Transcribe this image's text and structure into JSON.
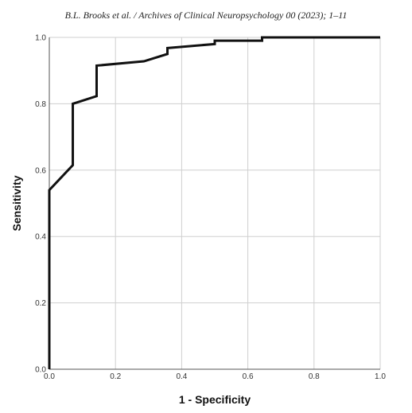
{
  "header": {
    "citation": "B.L. Brooks et al. / Archives of Clinical Neuropsychology 00 (2023); 1–11"
  },
  "chart_data": {
    "type": "line",
    "title": "",
    "xlabel": "1 - Specificity",
    "ylabel": "Sensitivity",
    "xlim": [
      0,
      1
    ],
    "ylim": [
      0,
      1
    ],
    "xticks": [
      "0.0",
      "0.2",
      "0.4",
      "0.6",
      "0.8",
      "1.0"
    ],
    "yticks": [
      "0.0",
      "0.2",
      "0.4",
      "0.6",
      "0.8",
      "1.0"
    ],
    "grid": true,
    "legend": "none",
    "series": [
      {
        "color": "#111111",
        "points": [
          [
            0.0,
            0.0
          ],
          [
            0.0,
            0.54
          ],
          [
            0.071,
            0.615
          ],
          [
            0.071,
            0.8
          ],
          [
            0.143,
            0.823
          ],
          [
            0.143,
            0.915
          ],
          [
            0.286,
            0.928
          ],
          [
            0.357,
            0.95
          ],
          [
            0.357,
            0.968
          ],
          [
            0.5,
            0.98
          ],
          [
            0.5,
            0.99
          ],
          [
            0.643,
            0.99
          ],
          [
            0.643,
            1.0
          ],
          [
            1.0,
            1.0
          ]
        ]
      }
    ]
  }
}
